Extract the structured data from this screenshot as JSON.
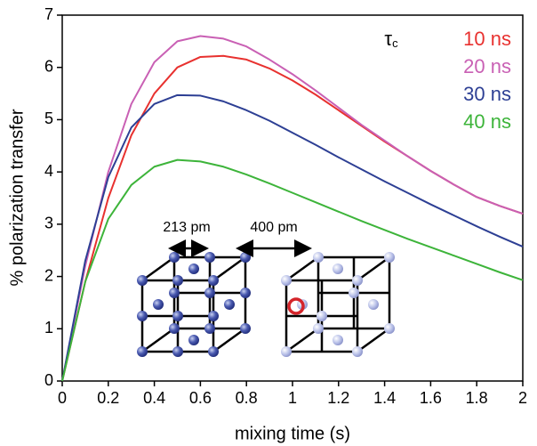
{
  "chart_data": {
    "type": "line",
    "x_label": "mixing time (s)",
    "y_label": "% polarization transfer",
    "legend_title": "τ",
    "legend_title_sub": "c",
    "legend_position": "upper right",
    "x": [
      0,
      0.1,
      0.2,
      0.3,
      0.4,
      0.5,
      0.6,
      0.7,
      0.8,
      0.9,
      1.0,
      1.1,
      1.2,
      1.3,
      1.4,
      1.5,
      1.6,
      1.7,
      1.8,
      1.9,
      2.0
    ],
    "series": [
      {
        "name": "10 ns",
        "color": "#e8312f",
        "values": [
          0,
          1.9,
          3.5,
          4.7,
          5.5,
          6.0,
          6.2,
          6.22,
          6.15,
          5.98,
          5.75,
          5.48,
          5.18,
          4.88,
          4.58,
          4.3,
          4.02,
          3.76,
          3.52,
          3.35,
          3.2
        ]
      },
      {
        "name": "20 ns",
        "color": "#c960b4",
        "values": [
          0,
          2.2,
          4.0,
          5.3,
          6.1,
          6.5,
          6.6,
          6.55,
          6.4,
          6.15,
          5.87,
          5.56,
          5.23,
          4.9,
          4.6,
          4.3,
          4.02,
          3.76,
          3.52,
          3.35,
          3.2
        ]
      },
      {
        "name": "30 ns",
        "color": "#2d3f94",
        "values": [
          0,
          2.3,
          3.9,
          4.85,
          5.3,
          5.47,
          5.46,
          5.35,
          5.18,
          4.98,
          4.75,
          4.52,
          4.28,
          4.05,
          3.82,
          3.6,
          3.38,
          3.17,
          2.96,
          2.76,
          2.57
        ]
      },
      {
        "name": "40 ns",
        "color": "#3db43a",
        "values": [
          0,
          1.9,
          3.1,
          3.75,
          4.1,
          4.23,
          4.2,
          4.1,
          3.95,
          3.78,
          3.6,
          3.42,
          3.24,
          3.06,
          2.89,
          2.72,
          2.56,
          2.4,
          2.24,
          2.08,
          1.93
        ]
      }
    ],
    "xlim": [
      0,
      2
    ],
    "xticks": [
      0,
      0.2,
      0.4,
      0.6,
      0.8,
      1,
      1.2,
      1.4,
      1.6,
      1.8,
      2
    ],
    "ylim": [
      0,
      7
    ],
    "yticks": [
      0,
      1,
      2,
      3,
      4,
      5,
      6,
      7
    ],
    "grid": false,
    "annotations": [
      "213 pm",
      "400 pm"
    ]
  }
}
